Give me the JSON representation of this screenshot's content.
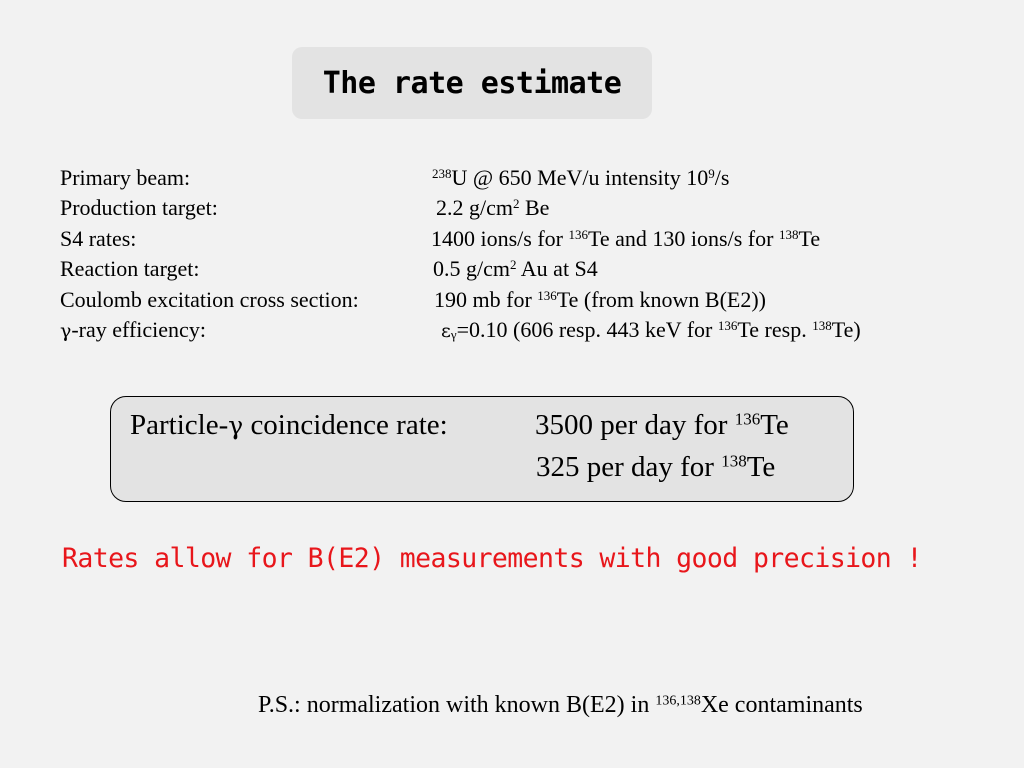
{
  "title": "The rate estimate",
  "params": [
    {
      "label": "Primary beam:",
      "value_parts": [
        [
          "sup",
          "238"
        ],
        [
          "t",
          "U @ 650 MeV/u   intensity 10"
        ],
        [
          "sup",
          "9"
        ],
        [
          "t",
          "/s"
        ]
      ]
    },
    {
      "label": "Production target:",
      "value_parts": [
        [
          "t",
          "2.2 g/cm"
        ],
        [
          "sup",
          "2"
        ],
        [
          "t",
          " Be"
        ]
      ]
    },
    {
      "label": "S4 rates:",
      "value_parts": [
        [
          "t",
          "1400 ions/s for "
        ],
        [
          "sup",
          "136"
        ],
        [
          "t",
          "Te and 130 ions/s for "
        ],
        [
          "sup",
          "138"
        ],
        [
          "t",
          "Te"
        ]
      ]
    },
    {
      "label": "Reaction target:",
      "value_parts": [
        [
          "t",
          "0.5 g/cm"
        ],
        [
          "sup",
          "2"
        ],
        [
          "t",
          " Au at S4"
        ]
      ]
    },
    {
      "label": "Coulomb excitation cross section:",
      "value_parts": [
        [
          "t",
          "190 mb for "
        ],
        [
          "sup",
          "136"
        ],
        [
          "t",
          "Te (from known B(E2))"
        ]
      ]
    },
    {
      "label_parts": [
        [
          "sym",
          "γ"
        ],
        [
          "t",
          "-ray efficiency:"
        ]
      ],
      "value_parts": [
        [
          "sym",
          "ε"
        ],
        [
          "sub",
          "γ"
        ],
        [
          "t",
          "=0.10    (606 resp. 443 keV for "
        ],
        [
          "sup",
          "136"
        ],
        [
          "t",
          "Te resp. "
        ],
        [
          "sup",
          "138"
        ],
        [
          "t",
          "Te)"
        ]
      ]
    }
  ],
  "coincidence": {
    "label_parts": [
      [
        "t",
        "Particle-"
      ],
      [
        "sym",
        "γ"
      ],
      [
        "t",
        " coincidence rate:"
      ]
    ],
    "line1_parts": [
      [
        "t",
        "3500 per day for "
      ],
      [
        "sup",
        "136"
      ],
      [
        "t",
        "Te"
      ]
    ],
    "line2_parts": [
      [
        "t",
        "325 per day for "
      ],
      [
        "sup",
        "138"
      ],
      [
        "t",
        "Te"
      ]
    ]
  },
  "conclusion": "Rates allow for B(E2) measurements with good precision !",
  "ps_parts": [
    [
      "t",
      "P.S.: normalization with known B(E2) in "
    ],
    [
      "sup",
      "136,138"
    ],
    [
      "t",
      "Xe contaminants"
    ]
  ]
}
